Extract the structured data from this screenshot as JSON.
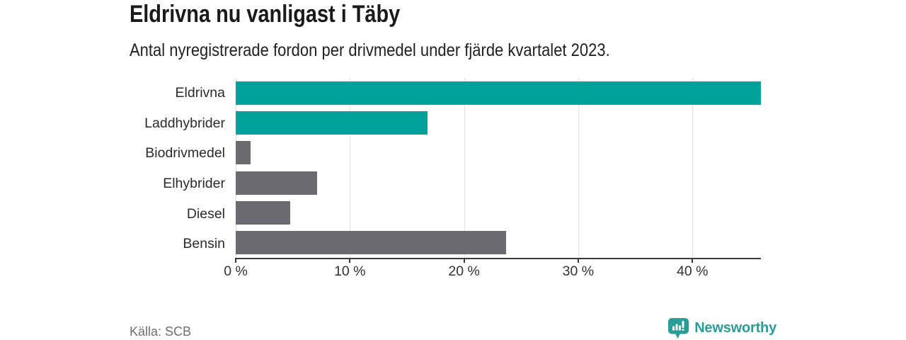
{
  "header": {
    "title": "Eldrivna nu vanligast i Täby",
    "subtitle": "Antal nyregistrerade fordon per drivmedel under fjärde kvartalet 2023."
  },
  "chart_data": {
    "type": "bar",
    "orientation": "horizontal",
    "title": "Eldrivna nu vanligast i Täby",
    "subtitle": "Antal nyregistrerade fordon per drivmedel under fjärde kvartalet 2023.",
    "categories": [
      "Eldrivna",
      "Laddhybrider",
      "Biodrivmedel",
      "Elhybrider",
      "Diesel",
      "Bensin"
    ],
    "values": [
      46,
      16.8,
      1.3,
      7.1,
      4.8,
      23.7
    ],
    "unit": "%",
    "xlim": [
      0,
      46
    ],
    "xticks": [
      0,
      10,
      20,
      30,
      40
    ],
    "xtick_labels": [
      "0 %",
      "10 %",
      "20 %",
      "30 %",
      "40 %"
    ],
    "series_colors": [
      "#00a29a",
      "#00a29a",
      "#6a6a70",
      "#6a6a70",
      "#6a6a70",
      "#6a6a70"
    ],
    "grid": "vertical-light",
    "legend": false
  },
  "footer": {
    "source": "Källa: SCB",
    "brand": "Newsworthy"
  },
  "colors": {
    "accent_teal": "#00a29a",
    "neutral_gray": "#6a6a70",
    "brand_teal": "#2a9d96",
    "grid_line": "#e1e1e1",
    "axis_line": "#3b3b3b",
    "text_dark": "#1a1a1a",
    "text_muted": "#6f6f6f"
  }
}
